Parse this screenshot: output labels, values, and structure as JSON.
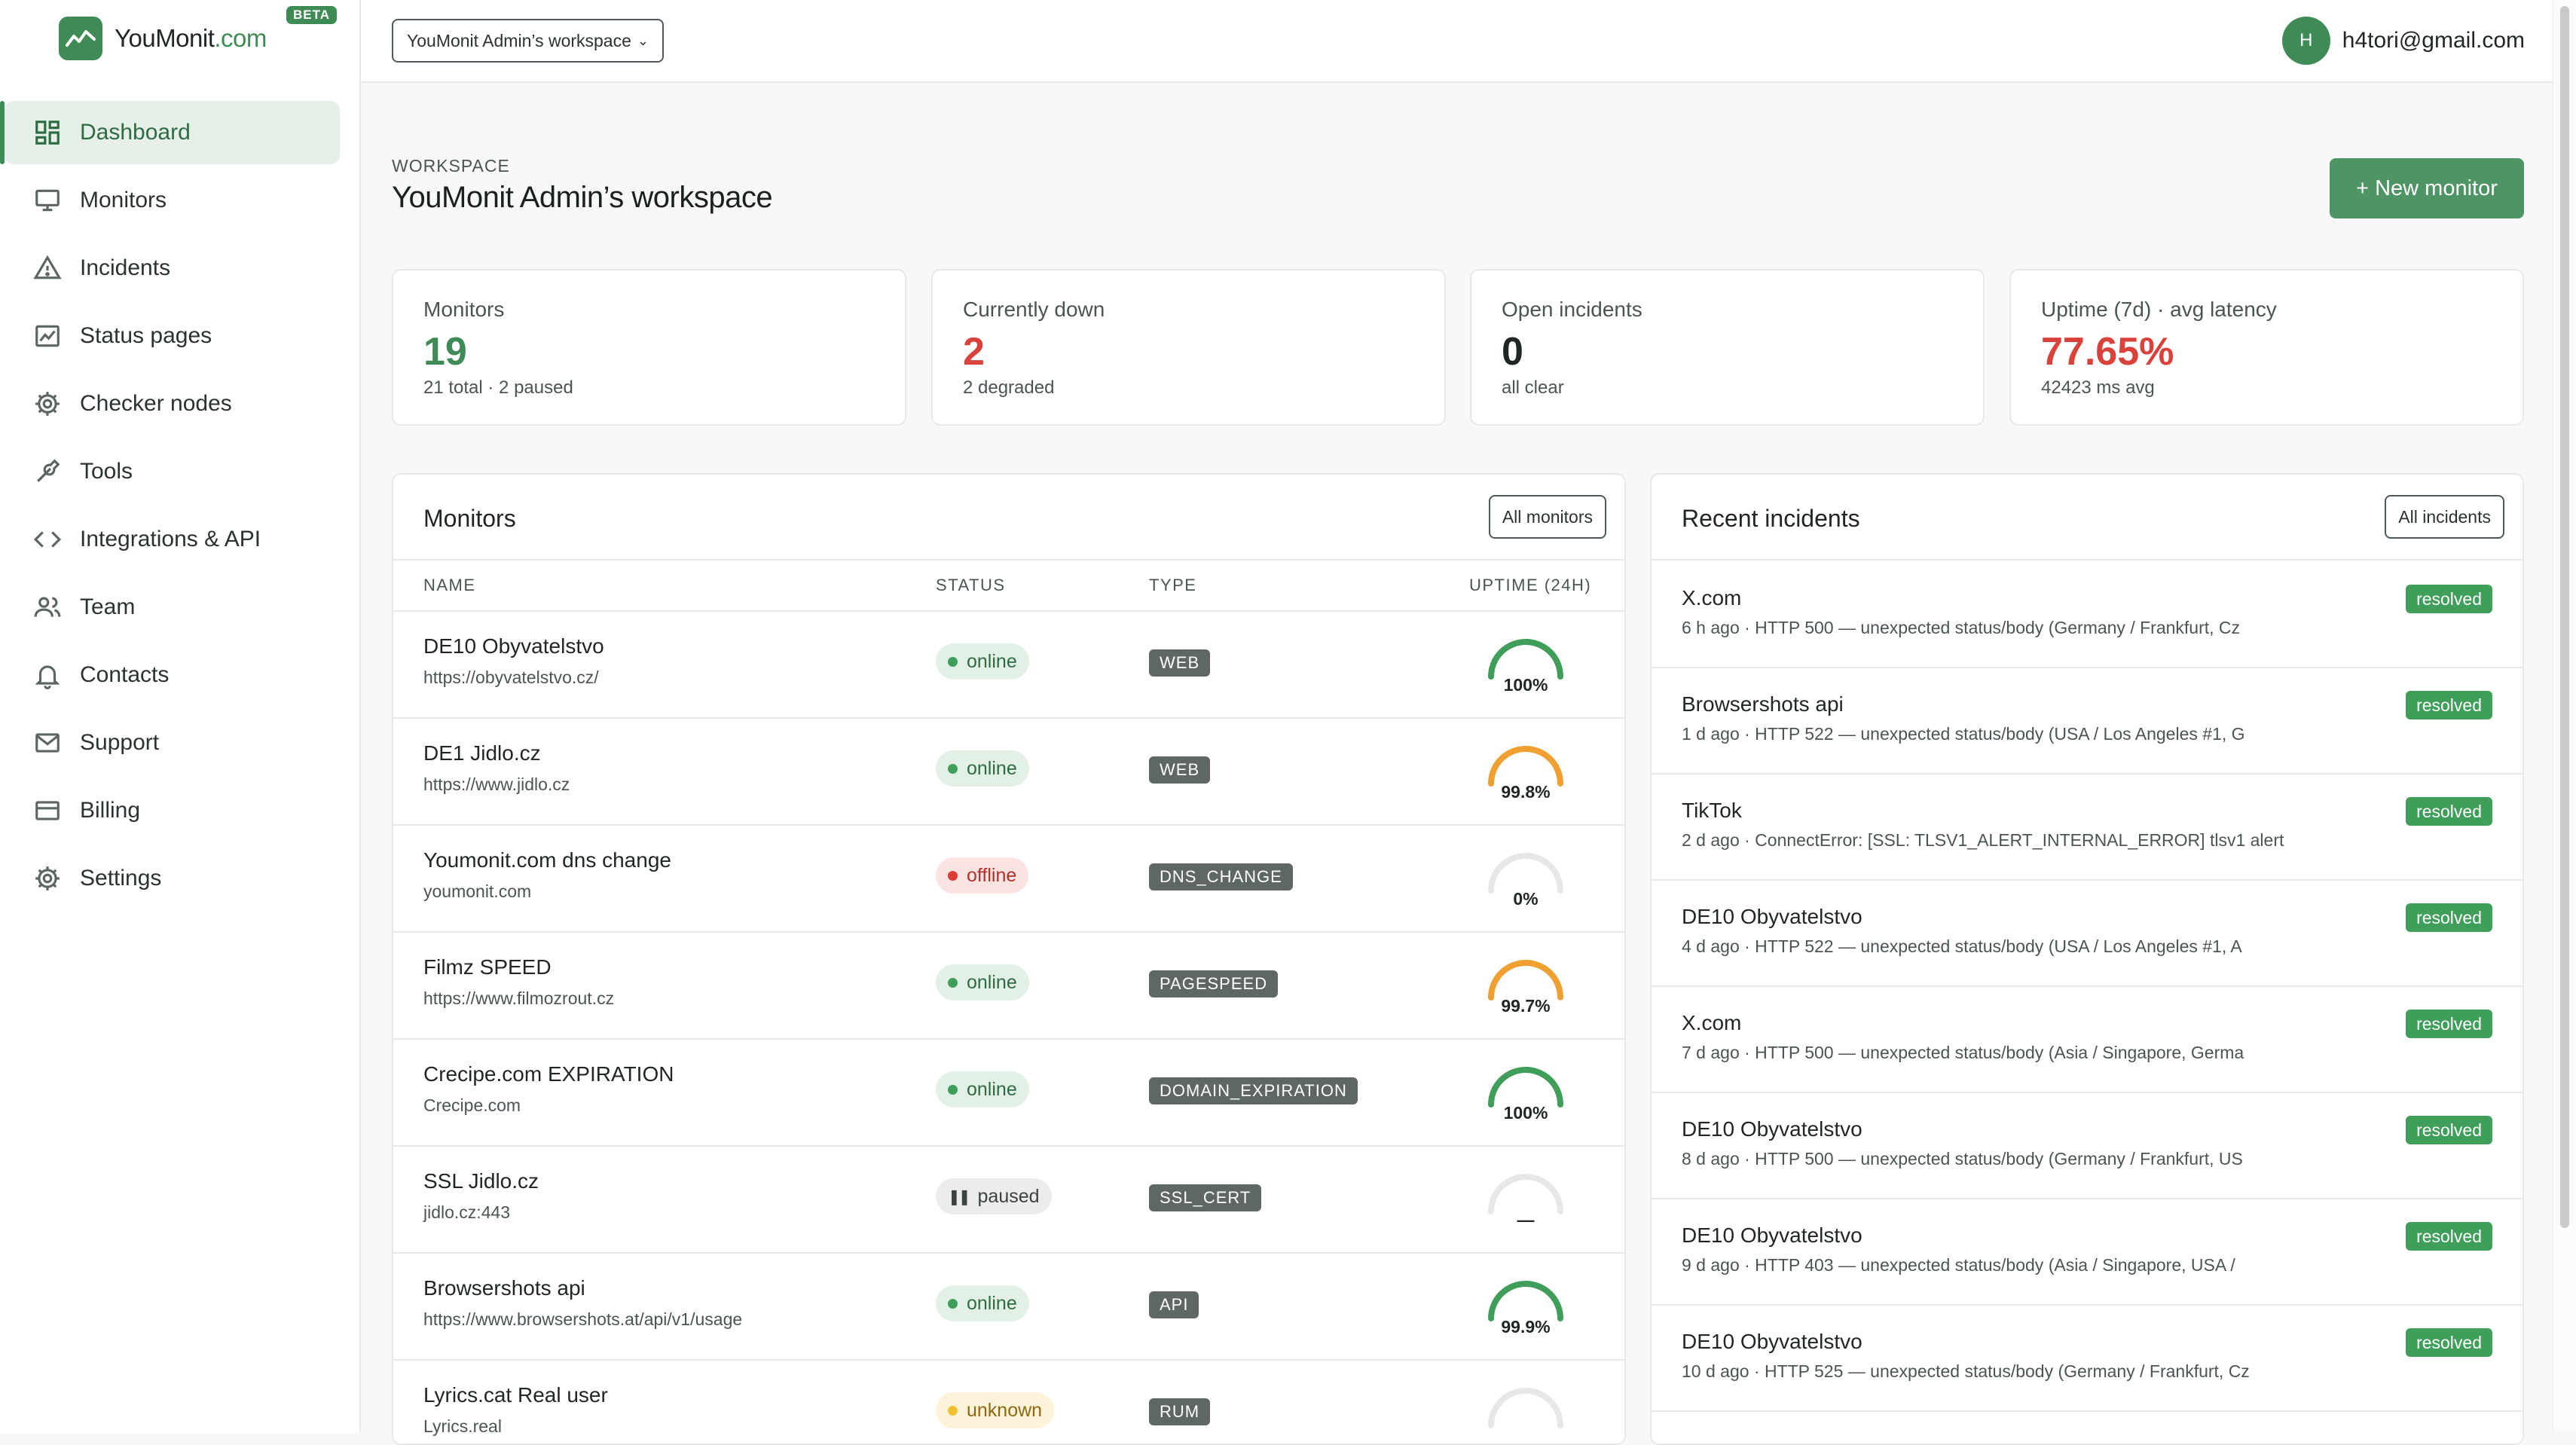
{
  "brand": {
    "name": "YouMonit",
    "domain_suffix": ".com",
    "badge": "BETA",
    "color": "#3f8b55"
  },
  "sidebar": {
    "items": [
      {
        "label": "Dashboard",
        "icon": "dashboard-icon",
        "active": true
      },
      {
        "label": "Monitors",
        "icon": "monitor-icon"
      },
      {
        "label": "Incidents",
        "icon": "warning-icon"
      },
      {
        "label": "Status pages",
        "icon": "chart-icon"
      },
      {
        "label": "Checker nodes",
        "icon": "gear-icon"
      },
      {
        "label": "Tools",
        "icon": "wrench-icon"
      },
      {
        "label": "Integrations & API",
        "icon": "code-icon"
      },
      {
        "label": "Team",
        "icon": "users-icon"
      },
      {
        "label": "Contacts",
        "icon": "bell-icon"
      },
      {
        "label": "Support",
        "icon": "mail-icon"
      },
      {
        "label": "Billing",
        "icon": "card-icon"
      },
      {
        "label": "Settings",
        "icon": "gear-icon"
      }
    ]
  },
  "topbar": {
    "workspace_select": "YouMonit Admin’s workspace",
    "avatar_initial": "H",
    "user_email": "h4tori@gmail.com"
  },
  "header": {
    "label": "WORKSPACE",
    "title": "YouMonit Admin’s workspace",
    "new_monitor_label": "+ New monitor"
  },
  "stats": [
    {
      "label": "Monitors",
      "value": "19",
      "sub": "21 total · 2 paused",
      "color": "green"
    },
    {
      "label": "Currently down",
      "value": "2",
      "sub": "2 degraded",
      "color": "red"
    },
    {
      "label": "Open incidents",
      "value": "0",
      "sub": "all clear",
      "color": "dark"
    },
    {
      "label": "Uptime (7d) · avg latency",
      "value": "77.65%",
      "sub": "42423 ms avg",
      "color": "red"
    }
  ],
  "monitors_panel": {
    "title": "Monitors",
    "button": "All monitors",
    "columns": {
      "name": "NAME",
      "status": "STATUS",
      "type": "TYPE",
      "uptime": "UPTIME (24H)"
    },
    "rows": [
      {
        "name": "DE10 Obyvatelstvo",
        "url": "https://obyvatelstvo.cz/",
        "status": "online",
        "type": "WEB",
        "uptime": "100%",
        "uptime_fraction": 1.0,
        "gauge_color": "#3f9f5a"
      },
      {
        "name": "DE1 Jidlo.cz",
        "url": "https://www.jidlo.cz",
        "status": "online",
        "type": "WEB",
        "uptime": "99.8%",
        "uptime_fraction": 0.998,
        "gauge_color": "#f0a030"
      },
      {
        "name": "Youmonit.com dns change",
        "url": "youmonit.com",
        "status": "offline",
        "type": "DNS_CHANGE",
        "uptime": "0%",
        "uptime_fraction": 0,
        "gauge_color": "#3f9f5a"
      },
      {
        "name": "Filmz SPEED",
        "url": "https://www.filmozrout.cz",
        "status": "online",
        "type": "PAGESPEED",
        "uptime": "99.7%",
        "uptime_fraction": 0.997,
        "gauge_color": "#f0a030"
      },
      {
        "name": "Crecipe.com EXPIRATION",
        "url": "Crecipe.com",
        "status": "online",
        "type": "DOMAIN_EXPIRATION",
        "uptime": "100%",
        "uptime_fraction": 1.0,
        "gauge_color": "#3f9f5a"
      },
      {
        "name": "SSL Jidlo.cz",
        "url": "jidlo.cz:443",
        "status": "paused",
        "type": "SSL_CERT",
        "uptime": "—",
        "uptime_fraction": 0,
        "gauge_color": "#3f9f5a"
      },
      {
        "name": "Browsershots api",
        "url": "https://www.browsershots.at/api/v1/usage",
        "status": "online",
        "type": "API",
        "uptime": "99.9%",
        "uptime_fraction": 0.999,
        "gauge_color": "#3f9f5a"
      },
      {
        "name": "Lyrics.cat Real user",
        "url": "Lyrics.real",
        "status": "unknown",
        "type": "RUM",
        "uptime": "",
        "uptime_fraction": 0,
        "gauge_color": "#3f9f5a"
      }
    ]
  },
  "incidents_panel": {
    "title": "Recent incidents",
    "button": "All incidents",
    "rows": [
      {
        "title": "X.com",
        "sub": "6 h ago · HTTP 500 — unexpected status/body (Germany / Frankfurt, Cz",
        "status": "resolved"
      },
      {
        "title": "Browsershots api",
        "sub": "1 d ago · HTTP 522 — unexpected status/body (USA / Los Angeles #1, G",
        "status": "resolved"
      },
      {
        "title": "TikTok",
        "sub": "2 d ago · ConnectError: [SSL: TLSV1_ALERT_INTERNAL_ERROR] tlsv1 alert",
        "status": "resolved"
      },
      {
        "title": "DE10 Obyvatelstvo",
        "sub": "4 d ago · HTTP 522 — unexpected status/body (USA / Los Angeles #1, A",
        "status": "resolved"
      },
      {
        "title": "X.com",
        "sub": "7 d ago · HTTP 500 — unexpected status/body (Asia / Singapore, Germa",
        "status": "resolved"
      },
      {
        "title": "DE10 Obyvatelstvo",
        "sub": "8 d ago · HTTP 500 — unexpected status/body (Germany / Frankfurt, US",
        "status": "resolved"
      },
      {
        "title": "DE10 Obyvatelstvo",
        "sub": "9 d ago · HTTP 403 — unexpected status/body (Asia / Singapore, USA /",
        "status": "resolved"
      },
      {
        "title": "DE10 Obyvatelstvo",
        "sub": "10 d ago · HTTP 525 — unexpected status/body (Germany / Frankfurt, Cz",
        "status": "resolved"
      }
    ]
  }
}
